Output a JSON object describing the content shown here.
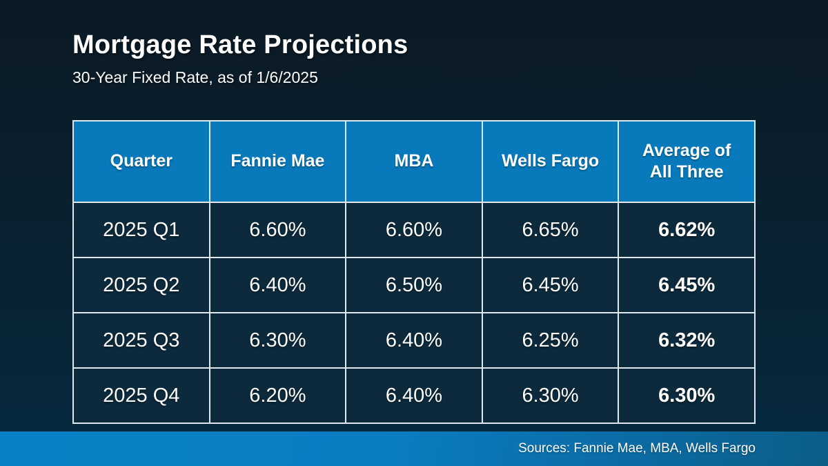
{
  "slide": {
    "title": "Mortgage Rate Projections",
    "subtitle": "30-Year Fixed Rate, as of 1/6/2025",
    "footer_sources": "Sources: Fannie Mae, MBA, Wells Fargo"
  },
  "chart_data": {
    "type": "table",
    "title": "Mortgage Rate Projections",
    "subtitle": "30-Year Fixed Rate, as of 1/6/2025",
    "columns": [
      "Quarter",
      "Fannie Mae",
      "MBA",
      "Wells Fargo",
      "Average of All Three"
    ],
    "rows": [
      [
        "2025 Q1",
        "6.60%",
        "6.60%",
        "6.65%",
        "6.62%"
      ],
      [
        "2025 Q2",
        "6.40%",
        "6.50%",
        "6.45%",
        "6.45%"
      ],
      [
        "2025 Q3",
        "6.30%",
        "6.40%",
        "6.25%",
        "6.32%"
      ],
      [
        "2025 Q4",
        "6.20%",
        "6.40%",
        "6.30%",
        "6.30%"
      ]
    ],
    "notes": "Forecast 30-year fixed mortgage rates by quarter; last column is bold average of the three sources"
  },
  "colors": {
    "header_blue": "#0879ba",
    "cell_navy": "#0c2a3c",
    "table_border": "#dde8ef",
    "background_top": "#0b1a25",
    "background_bottom": "#062a40",
    "footer_blue_left": "#0a81c6",
    "footer_blue_right": "#0c5d88",
    "text": "#ffffff"
  }
}
